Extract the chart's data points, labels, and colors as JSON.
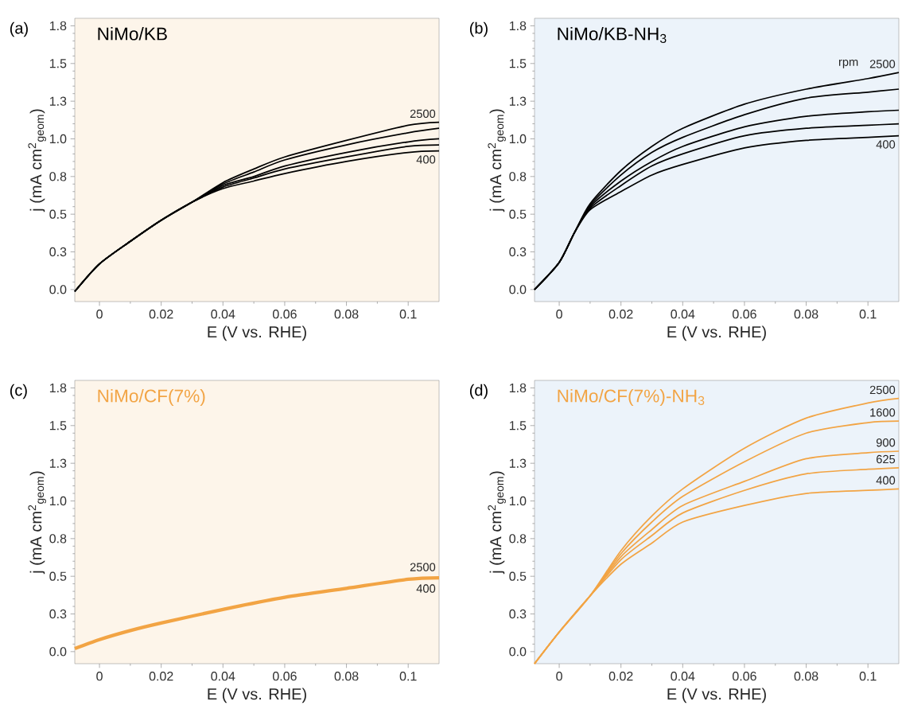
{
  "chart_data": [
    {
      "type": "line",
      "title": "NiMo/KB",
      "xlabel": "E (V vs. RHE)",
      "ylabel": "j (mA cm$^{2}$$_{geom}$)",
      "annotations": [
        "(a)"
      ],
      "x": [
        -0.008,
        0,
        0.01,
        0.02,
        0.03,
        0.04,
        0.05,
        0.06,
        0.08,
        0.1,
        0.11
      ],
      "series": [
        {
          "name": "400",
          "color": "#000000",
          "values": [
            -0.013,
            0.17,
            0.32,
            0.46,
            0.58,
            0.67,
            0.72,
            0.77,
            0.85,
            0.91,
            0.92
          ]
        },
        {
          "color": "#000000",
          "values": [
            -0.013,
            0.17,
            0.32,
            0.46,
            0.58,
            0.68,
            0.74,
            0.8,
            0.88,
            0.95,
            0.96
          ]
        },
        {
          "color": "#000000",
          "values": [
            -0.013,
            0.17,
            0.32,
            0.46,
            0.58,
            0.69,
            0.75,
            0.82,
            0.91,
            0.98,
            1.0
          ]
        },
        {
          "color": "#000000",
          "values": [
            -0.013,
            0.17,
            0.32,
            0.46,
            0.58,
            0.7,
            0.78,
            0.86,
            0.96,
            1.04,
            1.07
          ]
        },
        {
          "name": "2500",
          "color": "#000000",
          "values": [
            -0.013,
            0.17,
            0.32,
            0.46,
            0.58,
            0.71,
            0.8,
            0.88,
            0.99,
            1.09,
            1.11
          ]
        }
      ],
      "xlim": [
        -0.008,
        0.11
      ],
      "ylim": [
        -0.08,
        1.8
      ],
      "xticks": [
        0,
        0.02,
        0.04,
        0.06,
        0.08,
        0.1
      ],
      "yticks": [
        {
          "value": 0,
          "label": "0.0"
        },
        {
          "value": 0.25,
          "label": "0.3"
        },
        {
          "value": 0.5,
          "label": "0.5"
        },
        {
          "value": 0.75,
          "label": "0.8"
        },
        {
          "value": 1.0,
          "label": "1.0"
        },
        {
          "value": 1.25,
          "label": "1.3"
        },
        {
          "value": 1.5,
          "label": "1.5"
        },
        {
          "value": 1.75,
          "label": "1.8"
        }
      ]
    },
    {
      "type": "line",
      "title": "NiMo/KB-NH$_{3}$",
      "xlabel": "E (V vs. RHE)",
      "ylabel": "j (mA cm$^{2}$$_{geom}$)",
      "annotations": [
        "(b)",
        "rpm"
      ],
      "x": [
        -0.008,
        0,
        0.005,
        0.01,
        0.02,
        0.03,
        0.04,
        0.06,
        0.08,
        0.1,
        0.11
      ],
      "series": [
        {
          "name": "400",
          "color": "#000000",
          "values": [
            0,
            0.18,
            0.38,
            0.53,
            0.65,
            0.76,
            0.83,
            0.94,
            0.99,
            1.01,
            1.02
          ]
        },
        {
          "color": "#000000",
          "values": [
            0,
            0.18,
            0.38,
            0.54,
            0.69,
            0.82,
            0.9,
            1.02,
            1.07,
            1.09,
            1.1
          ]
        },
        {
          "color": "#000000",
          "values": [
            0,
            0.18,
            0.38,
            0.55,
            0.72,
            0.85,
            0.95,
            1.08,
            1.15,
            1.18,
            1.19
          ]
        },
        {
          "color": "#000000",
          "values": [
            0,
            0.18,
            0.38,
            0.56,
            0.76,
            0.91,
            1.01,
            1.16,
            1.27,
            1.31,
            1.33
          ]
        },
        {
          "name": "2500",
          "color": "#000000",
          "values": [
            0,
            0.18,
            0.38,
            0.57,
            0.79,
            0.95,
            1.07,
            1.23,
            1.33,
            1.4,
            1.44
          ]
        }
      ],
      "xlim": [
        -0.008,
        0.11
      ],
      "ylim": [
        -0.08,
        1.8
      ],
      "xticks": [
        0,
        0.02,
        0.04,
        0.06,
        0.08,
        0.1
      ],
      "yticks": [
        {
          "value": 0,
          "label": "0.0"
        },
        {
          "value": 0.25,
          "label": "0.3"
        },
        {
          "value": 0.5,
          "label": "0.5"
        },
        {
          "value": 0.75,
          "label": "0.8"
        },
        {
          "value": 1.0,
          "label": "1.0"
        },
        {
          "value": 1.25,
          "label": "1.3"
        },
        {
          "value": 1.5,
          "label": "1.5"
        },
        {
          "value": 1.75,
          "label": "1.8"
        }
      ]
    },
    {
      "type": "line",
      "title": "NiMo/CF(7%)",
      "xlabel": "E (V vs. RHE)",
      "ylabel": "j (mA cm$^{2}$$_{geom}$)",
      "annotations": [
        "(c)",
        "2500",
        "400"
      ],
      "x": [
        -0.008,
        0,
        0.01,
        0.02,
        0.04,
        0.06,
        0.08,
        0.1,
        0.11
      ],
      "series": [
        {
          "color": "#f2a444",
          "values": [
            0.02,
            0.08,
            0.14,
            0.19,
            0.28,
            0.36,
            0.42,
            0.48,
            0.49
          ]
        }
      ],
      "xlim": [
        -0.008,
        0.11
      ],
      "ylim": [
        -0.08,
        1.8
      ],
      "xticks": [
        0,
        0.02,
        0.04,
        0.06,
        0.08,
        0.1
      ],
      "yticks": [
        {
          "value": 0,
          "label": "0.0"
        },
        {
          "value": 0.25,
          "label": "0.3"
        },
        {
          "value": 0.5,
          "label": "0.5"
        },
        {
          "value": 0.75,
          "label": "0.8"
        },
        {
          "value": 1.0,
          "label": "1.0"
        },
        {
          "value": 1.25,
          "label": "1.3"
        },
        {
          "value": 1.5,
          "label": "1.5"
        },
        {
          "value": 1.75,
          "label": "1.8"
        }
      ]
    },
    {
      "type": "line",
      "title": "NiMo/CF(7%)-NH$_{3}$",
      "xlabel": "E (V vs. RHE)",
      "ylabel": "j (mA cm$^{2}$$_{geom}$)",
      "annotations": [
        "(d)"
      ],
      "x": [
        -0.008,
        0,
        0.01,
        0.02,
        0.03,
        0.04,
        0.06,
        0.08,
        0.1,
        0.11
      ],
      "series": [
        {
          "name": "400",
          "color": "#f2a444",
          "values": [
            -0.08,
            0.13,
            0.37,
            0.58,
            0.72,
            0.86,
            0.97,
            1.05,
            1.07,
            1.08
          ]
        },
        {
          "name": "625",
          "color": "#f2a444",
          "values": [
            -0.08,
            0.13,
            0.37,
            0.61,
            0.77,
            0.92,
            1.07,
            1.18,
            1.21,
            1.22
          ]
        },
        {
          "name": "900",
          "color": "#f2a444",
          "values": [
            -0.08,
            0.13,
            0.37,
            0.63,
            0.81,
            0.97,
            1.13,
            1.28,
            1.32,
            1.33
          ]
        },
        {
          "name": "1600",
          "color": "#f2a444",
          "values": [
            -0.08,
            0.13,
            0.37,
            0.65,
            0.86,
            1.03,
            1.26,
            1.45,
            1.52,
            1.53
          ]
        },
        {
          "name": "2500",
          "color": "#f2a444",
          "values": [
            -0.08,
            0.13,
            0.37,
            0.67,
            0.9,
            1.08,
            1.35,
            1.55,
            1.65,
            1.68
          ]
        }
      ],
      "xlim": [
        -0.008,
        0.11
      ],
      "ylim": [
        -0.08,
        1.8
      ],
      "xticks": [
        0,
        0.02,
        0.04,
        0.06,
        0.08,
        0.1
      ],
      "yticks": [
        {
          "value": 0,
          "label": "0.0"
        },
        {
          "value": 0.25,
          "label": "0.3"
        },
        {
          "value": 0.5,
          "label": "0.5"
        },
        {
          "value": 0.75,
          "label": "0.8"
        },
        {
          "value": 1.0,
          "label": "1.0"
        },
        {
          "value": 1.25,
          "label": "1.3"
        },
        {
          "value": 1.5,
          "label": "1.5"
        },
        {
          "value": 1.75,
          "label": "1.8"
        }
      ]
    }
  ]
}
